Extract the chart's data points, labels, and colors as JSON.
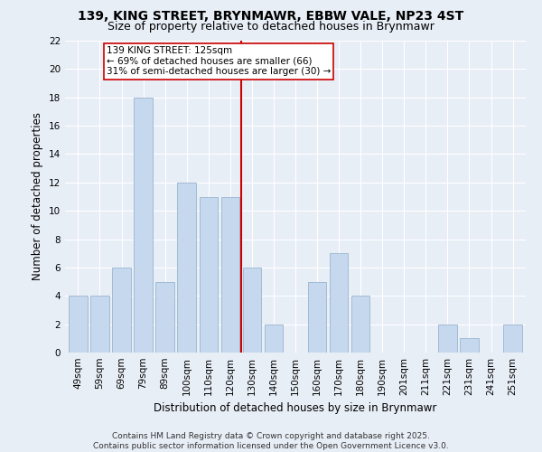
{
  "title_line1": "139, KING STREET, BRYNMAWR, EBBW VALE, NP23 4ST",
  "title_line2": "Size of property relative to detached houses in Brynmawr",
  "categories": [
    "49sqm",
    "59sqm",
    "69sqm",
    "79sqm",
    "89sqm",
    "100sqm",
    "110sqm",
    "120sqm",
    "130sqm",
    "140sqm",
    "150sqm",
    "160sqm",
    "170sqm",
    "180sqm",
    "190sqm",
    "201sqm",
    "211sqm",
    "221sqm",
    "231sqm",
    "241sqm",
    "251sqm"
  ],
  "values": [
    4,
    4,
    6,
    18,
    5,
    12,
    11,
    11,
    6,
    2,
    0,
    5,
    7,
    4,
    0,
    0,
    0,
    2,
    1,
    0,
    2
  ],
  "bar_color": "#c5d8ee",
  "bar_edge_color": "#9ab5d0",
  "background_color": "#e8eef6",
  "grid_color": "#ffffff",
  "ylabel": "Number of detached properties",
  "xlabel": "Distribution of detached houses by size in Brynmawr",
  "ylim": [
    0,
    22
  ],
  "yticks": [
    0,
    2,
    4,
    6,
    8,
    10,
    12,
    14,
    16,
    18,
    20,
    22
  ],
  "vline_x": 7.5,
  "vline_color": "#cc0000",
  "annotation_title": "139 KING STREET: 125sqm",
  "annotation_line1": "← 69% of detached houses are smaller (66)",
  "annotation_line2": "31% of semi-detached houses are larger (30) →",
  "annotation_box_color": "#ffffff",
  "annotation_box_edge": "#cc0000",
  "footer_line1": "Contains HM Land Registry data © Crown copyright and database right 2025.",
  "footer_line2": "Contains public sector information licensed under the Open Government Licence v3.0.",
  "title_fontsize": 10,
  "subtitle_fontsize": 9,
  "axis_label_fontsize": 8.5,
  "tick_fontsize": 7.5,
  "annotation_fontsize": 7.5,
  "footer_fontsize": 6.5
}
